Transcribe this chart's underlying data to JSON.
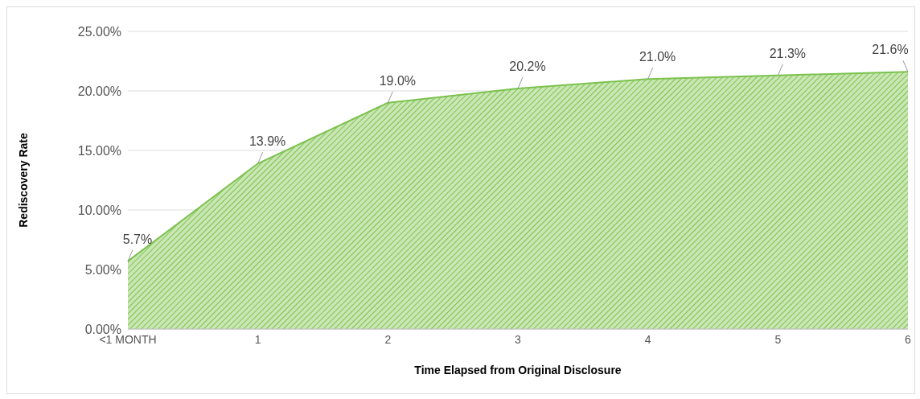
{
  "chart_data": {
    "type": "area",
    "xlabel": "Time Elapsed from Original Disclosure",
    "ylabel": "Rediscovery Rate",
    "categories": [
      "<1 MONTH",
      "1",
      "2",
      "3",
      "4",
      "5",
      "6"
    ],
    "values": [
      5.7,
      13.9,
      19.0,
      20.2,
      21.0,
      21.3,
      21.6
    ],
    "value_labels": [
      "5.7%",
      "13.9%",
      "19.0%",
      "20.2%",
      "21.0%",
      "21.3%",
      "21.6%"
    ],
    "color": "#7cc24e",
    "ylim": [
      0,
      25
    ],
    "yticks": [
      {
        "value": 0,
        "label": "0.00%"
      },
      {
        "value": 5,
        "label": "5.00%"
      },
      {
        "value": 10,
        "label": "10.00%"
      },
      {
        "value": 15,
        "label": "15.00%"
      },
      {
        "value": 20,
        "label": "20.00%"
      },
      {
        "value": 25,
        "label": "25.00%"
      }
    ],
    "grid": "y"
  }
}
